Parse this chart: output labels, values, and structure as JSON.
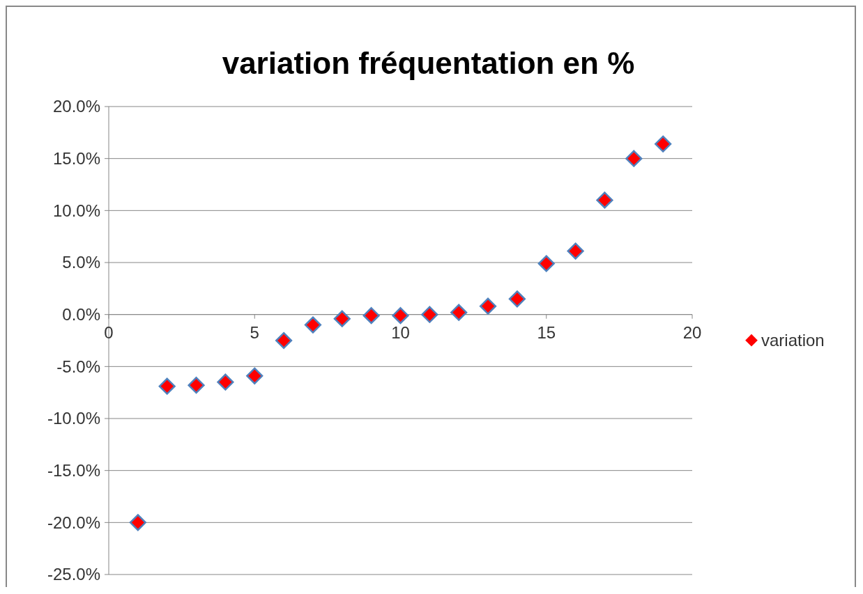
{
  "chart_data": {
    "type": "scatter",
    "title": "variation fréquentation en %",
    "x": [
      1,
      2,
      3,
      4,
      5,
      6,
      7,
      8,
      9,
      10,
      11,
      12,
      13,
      14,
      15,
      16,
      17,
      18,
      19
    ],
    "series": [
      {
        "name": "variation",
        "color": "#ff0000",
        "values": [
          -20.0,
          -6.9,
          -6.8,
          -6.5,
          -5.9,
          -2.5,
          -1.0,
          -0.4,
          -0.1,
          -0.1,
          0.0,
          0.2,
          0.8,
          1.5,
          4.9,
          6.1,
          11.0,
          15.0,
          16.4
        ]
      }
    ],
    "xlim": [
      0,
      20
    ],
    "xticks": [
      0,
      5,
      10,
      15,
      20
    ],
    "ylim": [
      -25,
      20
    ],
    "yticks": [
      {
        "value": -25,
        "label": "-25.0%"
      },
      {
        "value": -20,
        "label": "-20.0%"
      },
      {
        "value": -15,
        "label": "-15.0%"
      },
      {
        "value": -10,
        "label": "-10.0%"
      },
      {
        "value": -5,
        "label": "-5.0%"
      },
      {
        "value": 0,
        "label": "0.0%"
      },
      {
        "value": 5,
        "label": "5.0%"
      },
      {
        "value": 10,
        "label": "10.0%"
      },
      {
        "value": 15,
        "label": "15.0%"
      },
      {
        "value": 20,
        "label": "20.0%"
      }
    ],
    "grid": "y",
    "legend": "right",
    "marker": "diamond"
  }
}
